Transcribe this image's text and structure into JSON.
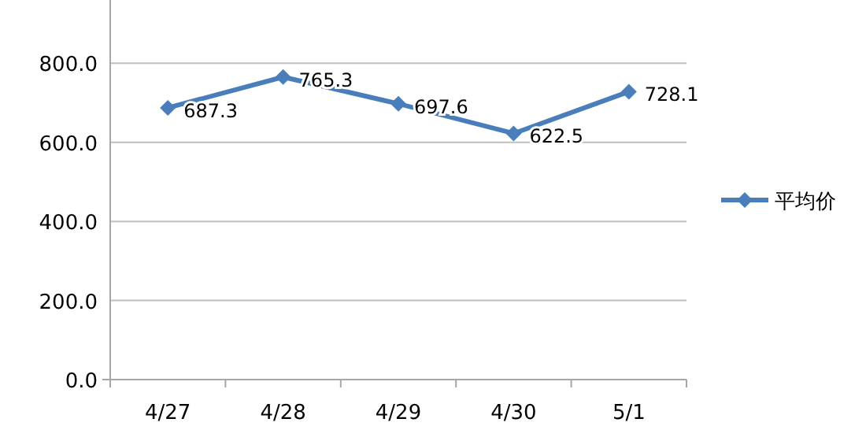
{
  "chart_data": {
    "type": "line",
    "categories": [
      "4/27",
      "4/28",
      "4/29",
      "4/30",
      "5/1"
    ],
    "series": [
      {
        "name": "平均价",
        "color": "#4a7ebb",
        "values": [
          687.3,
          765.3,
          697.6,
          622.5,
          728.1
        ]
      }
    ],
    "ylim": [
      0,
      960
    ],
    "yticks": [
      {
        "value": 0,
        "label": "0.0"
      },
      {
        "value": 200,
        "label": "200.0"
      },
      {
        "value": 400,
        "label": "400.0"
      },
      {
        "value": 600,
        "label": "600.0"
      },
      {
        "value": 800,
        "label": "800.0"
      }
    ],
    "grid": "y",
    "legend": "right",
    "marker": "diamond",
    "line_style": "solid",
    "data_labels": true
  }
}
